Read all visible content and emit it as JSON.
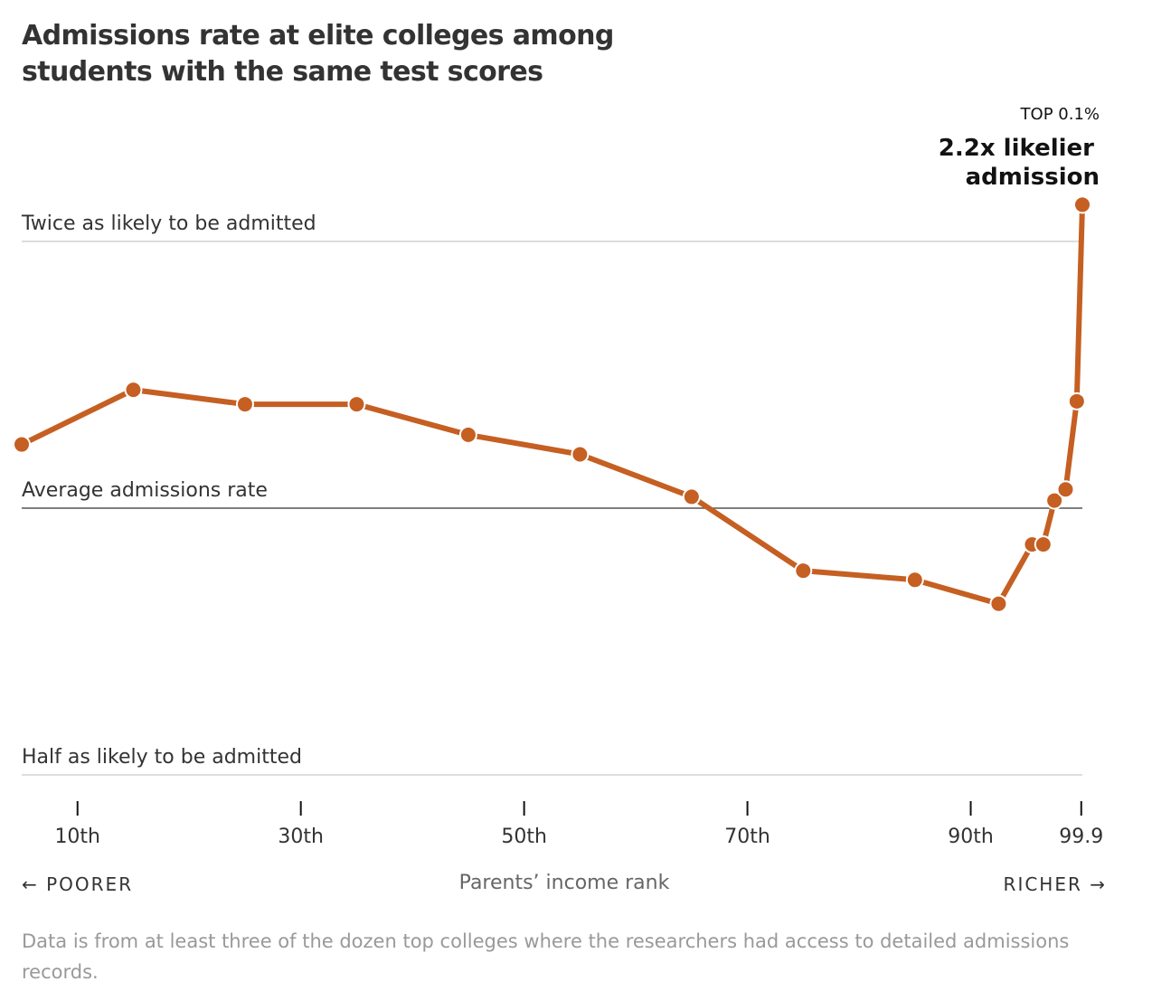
{
  "title": "Admissions rate at elite colleges among students with the same test scores",
  "chart_data": {
    "type": "line",
    "xlabel": "Parents’ income rank",
    "x_ticks": [
      {
        "value": 10,
        "label": "10th"
      },
      {
        "value": 30,
        "label": "30th"
      },
      {
        "value": 50,
        "label": "50th"
      },
      {
        "value": 70,
        "label": "70th"
      },
      {
        "value": 90,
        "label": "90th"
      },
      {
        "value": 99.9,
        "label": "99.9"
      }
    ],
    "y_scale": "log",
    "ylim": [
      0.5,
      2.0
    ],
    "reference_lines": [
      {
        "value": 2.0,
        "label": "Twice as likely to be admitted"
      },
      {
        "value": 1.0,
        "label": "Average admissions rate"
      },
      {
        "value": 0.5,
        "label": "Half as likely to be admitted"
      }
    ],
    "x": [
      5,
      15,
      25,
      35,
      45,
      55,
      65,
      75,
      85,
      92.5,
      95.5,
      96.5,
      97.5,
      98.5,
      99.5,
      100
    ],
    "y": [
      1.18,
      1.36,
      1.31,
      1.31,
      1.21,
      1.15,
      1.03,
      0.85,
      0.83,
      0.78,
      0.91,
      0.91,
      1.02,
      1.05,
      1.32,
      2.2
    ],
    "annotation": {
      "eyebrow": "TOP 0.1%",
      "line1": "2.2x likelier",
      "line2": "admission"
    },
    "direction_left": "← POORER",
    "direction_right": "RICHER →",
    "colors": {
      "line": "#c55f22",
      "reference": "#dddddd",
      "average": "#555555"
    }
  },
  "note": "Data is from at least three of the dozen top colleges where the researchers had access to detailed admissions records."
}
